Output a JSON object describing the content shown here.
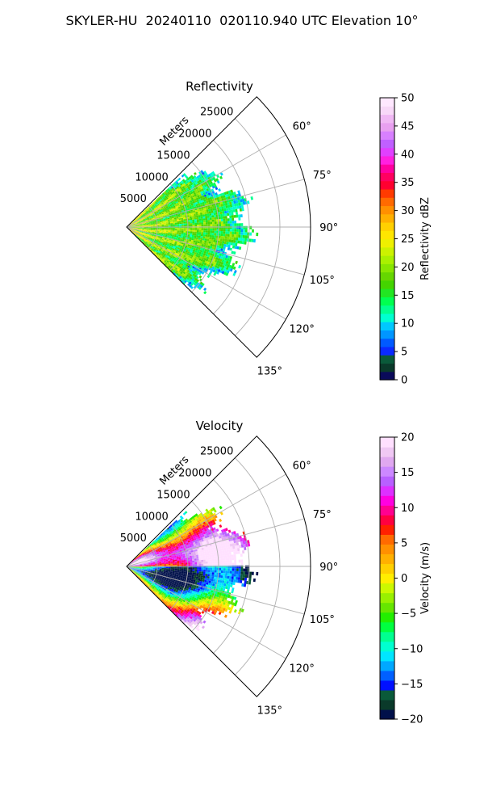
{
  "figure": {
    "suptitle": "SKYLER-HU  20240110  020110.940 UTC Elevation 10°"
  },
  "chart_data": [
    {
      "type": "polar-sector",
      "title": "Reflectivity",
      "range_axis_label": "Meters",
      "range_ticks": [
        5000,
        10000,
        15000,
        20000,
        25000
      ],
      "range_limit": [
        0,
        30000
      ],
      "azimuth_range_deg": [
        45,
        135
      ],
      "azimuth_ticks": [
        "60°",
        "75°",
        "90°",
        "105°",
        "120°",
        "135°"
      ],
      "grid": true,
      "colorbar": {
        "label": "Reflectivity dBZ",
        "min": 0,
        "max": 50,
        "ticks": [
          "0",
          "5",
          "10",
          "15",
          "20",
          "25",
          "30",
          "35",
          "40",
          "45",
          "50"
        ],
        "colors": [
          "#0a0a5a",
          "#0a3a2a",
          "#0a5a3a",
          "#0a2aff",
          "#005aff",
          "#0096ff",
          "#00c8ff",
          "#00ffd0",
          "#00ff90",
          "#00ff50",
          "#22e622",
          "#44d400",
          "#66d600",
          "#88e600",
          "#aaf000",
          "#ccf200",
          "#eef000",
          "#ffe600",
          "#ffd000",
          "#ffb000",
          "#ff9000",
          "#ff6a00",
          "#ff3a00",
          "#ff0030",
          "#ff0060",
          "#ff00a0",
          "#ff20e0",
          "#e040ff",
          "#c060ff",
          "#d880ff",
          "#e8a0f0",
          "#f0b8f4",
          "#f8d8f8",
          "#ffe8ff"
        ]
      }
    },
    {
      "type": "polar-sector",
      "title": "Velocity",
      "range_axis_label": "Meters",
      "range_ticks": [
        5000,
        10000,
        15000,
        20000,
        25000
      ],
      "range_limit": [
        0,
        30000
      ],
      "azimuth_range_deg": [
        45,
        135
      ],
      "azimuth_ticks": [
        "60°",
        "75°",
        "90°",
        "105°",
        "120°",
        "135°"
      ],
      "grid": true,
      "colorbar": {
        "label": "Velocity (m/s)",
        "min": -20,
        "max": 20,
        "ticks": [
          "−20",
          "−15",
          "−10",
          "−5",
          "0",
          "5",
          "10",
          "15",
          "20"
        ],
        "colors": [
          "#00104a",
          "#0a3a2a",
          "#0a5a3a",
          "#0010ff",
          "#0060ff",
          "#00a8ff",
          "#00e6ff",
          "#00ffd0",
          "#00ff90",
          "#00ff40",
          "#22ee00",
          "#66e600",
          "#99f000",
          "#ccf800",
          "#ffee00",
          "#ffd000",
          "#ffb000",
          "#ff9000",
          "#ff6a00",
          "#ff2000",
          "#ff0040",
          "#ff0090",
          "#ff00e0",
          "#dd30ff",
          "#b860ff",
          "#cc88ff",
          "#e0a8f0",
          "#f0c8f4",
          "#ffe0ff"
        ]
      }
    }
  ]
}
